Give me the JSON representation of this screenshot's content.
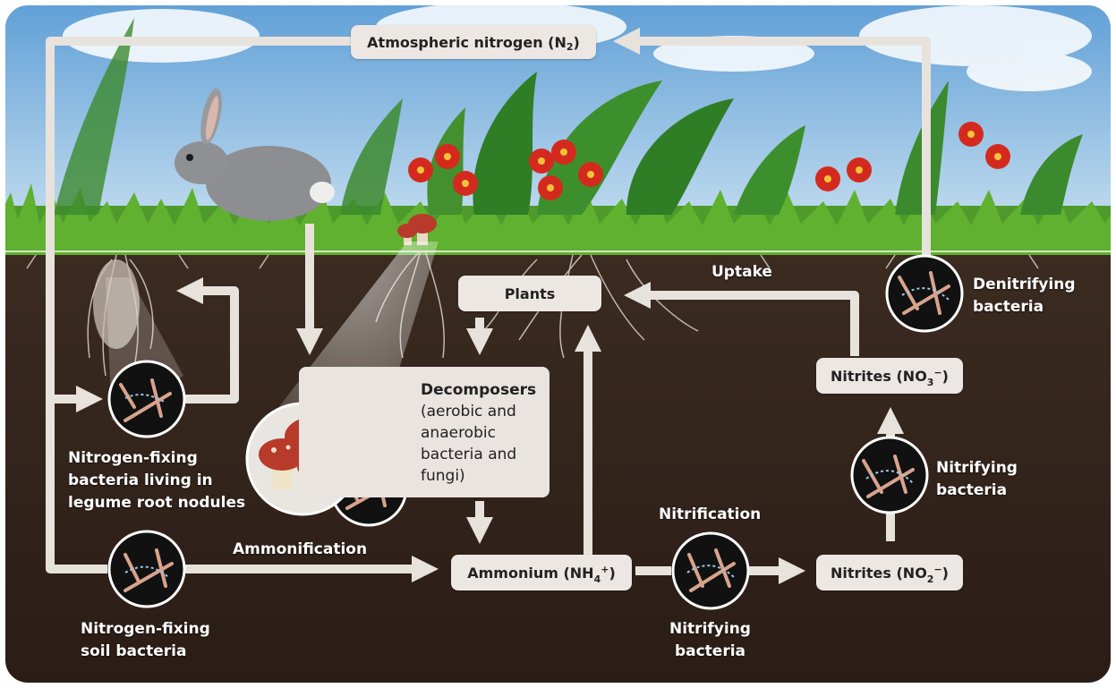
{
  "nodes": {
    "atmospheric_nitrogen": {
      "text": "Atmospheric nitrogen (N",
      "sub": "2",
      "close": ")"
    },
    "plants": "Plants",
    "ammonium": {
      "text": "Ammonium (NH",
      "sub": "4",
      "sup": "+",
      "close": ")"
    },
    "nitrites_no2": {
      "text": "Nitrites (NO",
      "sub": "2",
      "sup": "−",
      "close": ")"
    },
    "nitrites_no3": {
      "text": "Nitrites (NO",
      "sub": "3",
      "sup": "−",
      "close": ")"
    },
    "decomposers": {
      "title": "Decomposers",
      "description": "(aerobic and\nanaerobic\nbacteria and\nfungi)"
    }
  },
  "labels": {
    "uptake": "Uptake",
    "denitrifying": [
      "Denitrifying",
      "bacteria"
    ],
    "nitrifying_right": [
      "Nitrifying",
      "bacteria"
    ],
    "nitrification": "Nitrification",
    "nitrifying_bottom": [
      "Nitrifying",
      "bacteria"
    ],
    "ammonification": "Ammonification",
    "legume_bacteria": [
      "Nitrogen-fixing",
      "bacteria living in",
      "legume root nodules"
    ],
    "soil_bacteria": [
      "Nitrogen-fixing",
      "soil bacteria"
    ]
  },
  "colors": {
    "sky_top": "#5f9fd6",
    "sky_bottom": "#cfe4f2",
    "grass": "#4e9a2a",
    "soil_top": "#3a2a20",
    "soil_bottom": "#2a1d16",
    "arrow": "#e8e2dc",
    "box": "#ece7e2",
    "flower_red": "#d42a1e",
    "mushroom_cap": "#b83a2a"
  }
}
